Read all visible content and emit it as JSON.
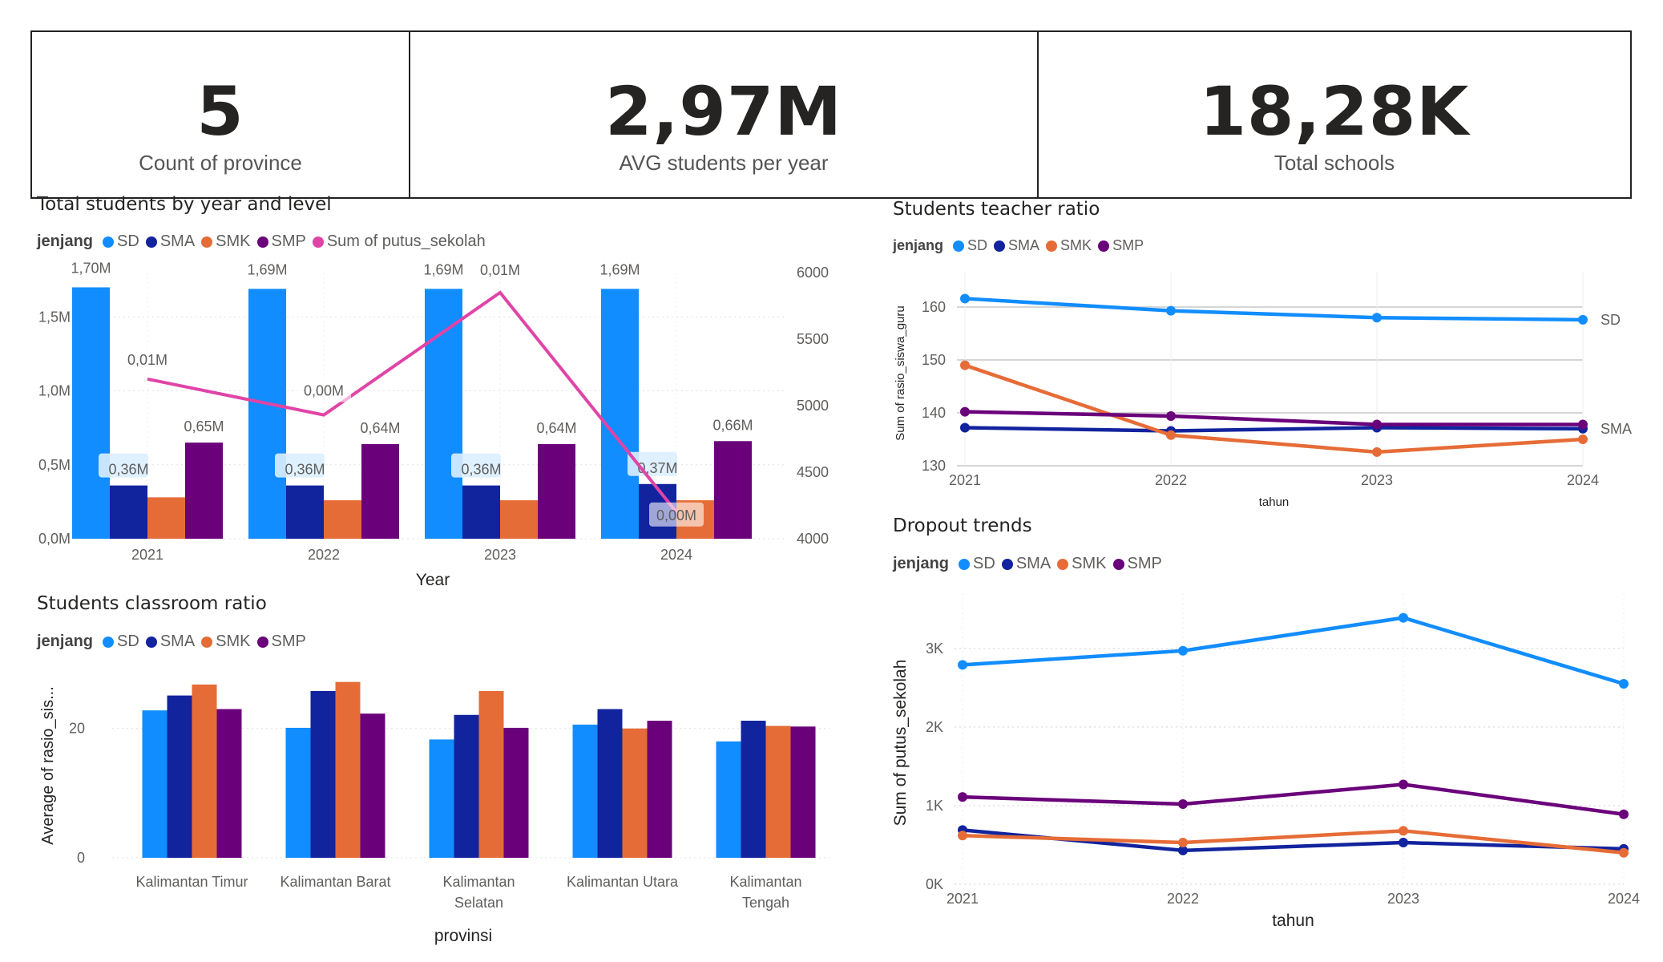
{
  "kpis": [
    {
      "value": "5",
      "label": "Count of province"
    },
    {
      "value": "2,97M",
      "label": "AVG students per year"
    },
    {
      "value": "18,28K",
      "label": "Total schools"
    }
  ],
  "colors": {
    "SD": "#118DFF",
    "SMA": "#12239E",
    "SMK": "#E66C37",
    "SMP": "#6B007B",
    "Sum of putus_sekolah": "#E044A7"
  },
  "legend_title": "jenjang",
  "chart_data": [
    {
      "id": "students_by_year",
      "type": "bar",
      "title": "Total students by year and level",
      "legend": [
        "SD",
        "SMA",
        "SMK",
        "SMP",
        "Sum of putus_sekolah"
      ],
      "categories": [
        "2021",
        "2022",
        "2023",
        "2024"
      ],
      "xlabel": "Year",
      "ylim": [
        0,
        1.8
      ],
      "yticks": [
        "0,0M",
        "0,5M",
        "1,0M",
        "1,5M"
      ],
      "y2lim": [
        4000,
        6000
      ],
      "y2ticks": [
        "4000",
        "4500",
        "5000",
        "5500",
        "6000"
      ],
      "series": [
        {
          "name": "SD",
          "values": [
            1.7,
            1.69,
            1.69,
            1.69
          ],
          "labels": [
            "1,70M",
            "1,69M",
            "1,69M",
            "1,69M"
          ]
        },
        {
          "name": "SMA",
          "values": [
            0.36,
            0.36,
            0.36,
            0.37
          ],
          "labels": [
            "0,36M",
            "0,36M",
            "0,36M",
            "0,37M"
          ]
        },
        {
          "name": "SMK",
          "values": [
            0.28,
            0.26,
            0.26,
            0.26
          ],
          "labels": [
            "",
            "",
            "",
            ""
          ]
        },
        {
          "name": "SMP",
          "values": [
            0.65,
            0.64,
            0.64,
            0.66
          ],
          "labels": [
            "0,65M",
            "0,64M",
            "0,64M",
            "0,66M"
          ]
        }
      ],
      "line": {
        "name": "Sum of putus_sekolah",
        "values": [
          5200,
          4930,
          5850,
          4200
        ],
        "labels": [
          "0,01M",
          "0,00M",
          "0,01M",
          "0,00M"
        ]
      }
    },
    {
      "id": "teacher_ratio",
      "type": "line",
      "title": "Students teacher ratio",
      "legend": [
        "SD",
        "SMA",
        "SMK",
        "SMP"
      ],
      "x": [
        "2021",
        "2022",
        "2023",
        "2024"
      ],
      "xlabel": "tahun",
      "ylabel": "Sum of rasio_siswa_guru",
      "ylim": [
        130,
        165
      ],
      "yticks": [
        130,
        140,
        150,
        160
      ],
      "series": [
        {
          "name": "SD",
          "values": [
            161.6,
            159.3,
            158.0,
            157.6
          ]
        },
        {
          "name": "SMA",
          "values": [
            137.2,
            136.6,
            137.2,
            137.0
          ]
        },
        {
          "name": "SMK",
          "values": [
            149.0,
            135.8,
            132.6,
            135.0
          ]
        },
        {
          "name": "SMP",
          "values": [
            140.2,
            139.4,
            137.8,
            137.8
          ]
        }
      ],
      "end_labels": [
        "SD",
        "SMA"
      ]
    },
    {
      "id": "classroom_ratio",
      "type": "bar",
      "title": "Students classroom ratio",
      "legend": [
        "SD",
        "SMA",
        "SMK",
        "SMP"
      ],
      "categories": [
        "Kalimantan Timur",
        "Kalimantan Barat",
        "Kalimantan Selatan",
        "Kalimantan Utara",
        "Kalimantan Tengah"
      ],
      "category_lines": [
        [
          "Kalimantan Timur"
        ],
        [
          "Kalimantan Barat"
        ],
        [
          "Kalimantan",
          "Selatan"
        ],
        [
          "Kalimantan Utara"
        ],
        [
          "Kalimantan",
          "Tengah"
        ]
      ],
      "xlabel": "provinsi",
      "ylabel": "Average of rasio_sis...",
      "ylim": [
        0,
        31
      ],
      "yticks": [
        0,
        20
      ],
      "series": [
        {
          "name": "SD",
          "values": [
            22.8,
            20.1,
            18.3,
            20.6,
            18.0
          ]
        },
        {
          "name": "SMA",
          "values": [
            25.1,
            25.8,
            22.1,
            23.0,
            21.2
          ]
        },
        {
          "name": "SMK",
          "values": [
            26.8,
            27.2,
            25.8,
            20.0,
            20.4
          ]
        },
        {
          "name": "SMP",
          "values": [
            23.0,
            22.3,
            20.1,
            21.2,
            20.3
          ]
        }
      ]
    },
    {
      "id": "dropout_trends",
      "type": "line",
      "title": "Dropout trends",
      "legend": [
        "SD",
        "SMA",
        "SMK",
        "SMP"
      ],
      "x": [
        "2021",
        "2022",
        "2023",
        "2024"
      ],
      "xlabel": "tahun",
      "ylabel": "Sum of putus_sekolah",
      "ylim": [
        0,
        3600
      ],
      "yticks": [
        "0K",
        "1K",
        "2K",
        "3K"
      ],
      "series": [
        {
          "name": "SD",
          "values": [
            2790,
            2970,
            3390,
            2550
          ]
        },
        {
          "name": "SMA",
          "values": [
            690,
            430,
            530,
            450
          ]
        },
        {
          "name": "SMK",
          "values": [
            620,
            530,
            680,
            400
          ]
        },
        {
          "name": "SMP",
          "values": [
            1110,
            1020,
            1270,
            890
          ]
        }
      ]
    }
  ]
}
